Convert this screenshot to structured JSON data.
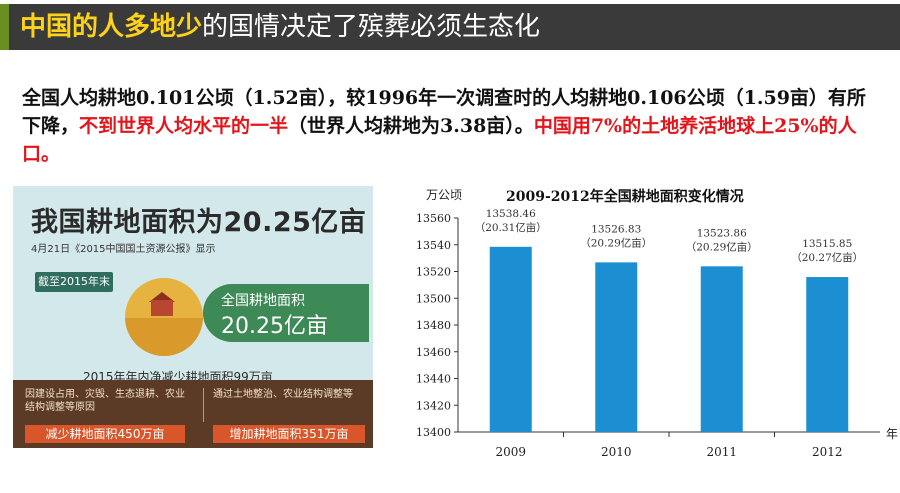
{
  "header": {
    "title_highlight": "中国的人多地少",
    "title_rest": "的国情决定了殡葬必须生态化"
  },
  "paragraph": {
    "part1": "全国人均耕地0.101公顷（1.52亩），较1996年一次调查时的人均耕地0.106公顷（1.59亩）有所下降，",
    "part2_red": "不到世界人均水平的一半",
    "part3": "（世界人均耕地为3.38亩）。",
    "part4_red": "中国用7%的土地养活地球上25%的人口。"
  },
  "infographic": {
    "heading": "我国耕地面积为20.25亿亩",
    "source": "4月21日《2015中国国土资源公报》显示",
    "badge": "截至2015年末",
    "area_label": "全国耕地面积",
    "area_value": "20.25亿亩",
    "net_decrease": "2015年年内净减少耕地面积99万亩",
    "left_reason": "因建设占用、灾毁、生态退耕、农业结构调整等原因",
    "left_result": "减少耕地面积450万亩",
    "right_reason": "通过土地整治、农业结构调整等",
    "right_result": "增加耕地面积351万亩"
  },
  "chart_data": {
    "type": "bar",
    "title": "2009-2012年全国耕地面积变化情况",
    "ylabel": "万公顷",
    "xlabel": "年",
    "categories": [
      "2009",
      "2010",
      "2011",
      "2012"
    ],
    "values": [
      13538.46,
      13526.83,
      13523.86,
      13515.85
    ],
    "value_labels": [
      "13538.46",
      "13526.83",
      "13523.86",
      "13515.85"
    ],
    "sub_labels": [
      "（20.31亿亩）",
      "（20.29亿亩）",
      "（20.29亿亩）",
      "（20.27亿亩）"
    ],
    "ylim": [
      13400,
      13560
    ],
    "yticks": [
      13400,
      13420,
      13440,
      13460,
      13480,
      13500,
      13520,
      13540,
      13560
    ],
    "bar_color": "#1b8fd2",
    "grid": false
  }
}
